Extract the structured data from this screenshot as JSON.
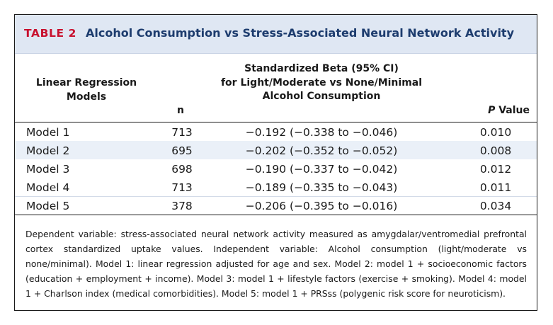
{
  "table": {
    "label": "TABLE 2",
    "title": "Alcohol Consumption vs Stress-Associated Neural Network Activity",
    "headers": {
      "models_line1": "Linear Regression",
      "models_line2": "Models",
      "n": "n",
      "beta_line1": "Standardized Beta (95% CI)",
      "beta_line2": "for Light/Moderate vs None/Minimal",
      "beta_line3": "Alcohol Consumption",
      "p_italic": "P",
      "p_rest": " Value"
    },
    "rows": [
      {
        "model": "Model 1",
        "n": "713",
        "beta": "−0.192 (−0.338 to −0.046)",
        "p": "0.010"
      },
      {
        "model": "Model 2",
        "n": "695",
        "beta": "−0.202 (−0.352 to −0.052)",
        "p": "0.008"
      },
      {
        "model": "Model 3",
        "n": "698",
        "beta": "−0.190 (−0.337 to −0.042)",
        "p": "0.012"
      },
      {
        "model": "Model 4",
        "n": "713",
        "beta": "−0.189 (−0.335 to −0.043)",
        "p": "0.011"
      },
      {
        "model": "Model 5",
        "n": "378",
        "beta": "−0.206 (−0.395 to −0.016)",
        "p": "0.034"
      }
    ],
    "footnote": "Dependent variable: stress-associated neural network activity measured as amygdalar/ventromedial prefrontal cortex standardized uptake values. Independent variable: Alcohol consumption (light/moderate vs none/minimal). Model 1: linear regression adjusted for age and sex. Model 2: model 1 + socioeconomic factors (education + employment + income). Model 3: model 1 + lifestyle factors (exercise + smoking). Model 4: model 1 + Charlson index (medical comorbidities). Model 5: model 1 + PRSss (polygenic risk score for neuroticism)."
  },
  "colors": {
    "label": "#c8102e",
    "title": "#1d3c6e",
    "title_band": "#dfe7f3",
    "row_band": "#eaf0f8"
  }
}
